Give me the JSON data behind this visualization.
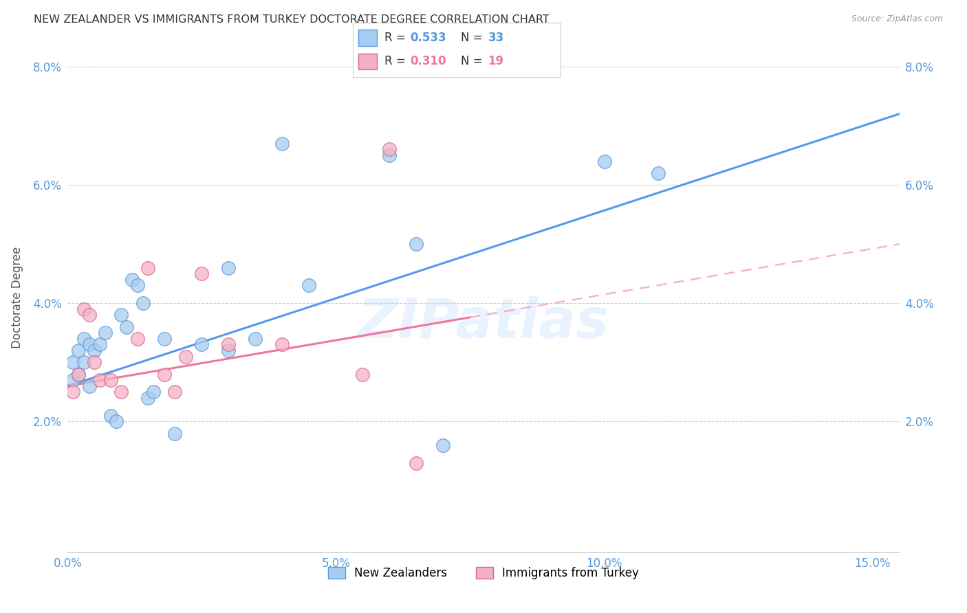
{
  "title": "NEW ZEALANDER VS IMMIGRANTS FROM TURKEY DOCTORATE DEGREE CORRELATION CHART",
  "source": "Source: ZipAtlas.com",
  "ylabel": "Doctorate Degree",
  "xlim": [
    0.0,
    0.155
  ],
  "ylim": [
    -0.002,
    0.084
  ],
  "r1": 0.533,
  "n1": 33,
  "r2": 0.31,
  "n2": 19,
  "color_blue_fill": "#A8CCF0",
  "color_blue_edge": "#5599DD",
  "color_pink_fill": "#F4B0C4",
  "color_pink_edge": "#DD6688",
  "line_blue": "#5599EE",
  "line_pink": "#EE7799",
  "watermark": "ZIPatlas",
  "legend1_label": "New Zealanders",
  "legend2_label": "Immigrants from Turkey",
  "xticks": [
    0.0,
    0.05,
    0.1,
    0.15
  ],
  "yticks": [
    0.02,
    0.04,
    0.06,
    0.08
  ],
  "blue_x": [
    0.001,
    0.001,
    0.002,
    0.002,
    0.003,
    0.003,
    0.004,
    0.004,
    0.005,
    0.006,
    0.007,
    0.008,
    0.009,
    0.01,
    0.011,
    0.012,
    0.013,
    0.014,
    0.015,
    0.016,
    0.018,
    0.02,
    0.025,
    0.03,
    0.03,
    0.035,
    0.04,
    0.045,
    0.06,
    0.065,
    0.07,
    0.1,
    0.11
  ],
  "blue_y": [
    0.027,
    0.03,
    0.028,
    0.032,
    0.03,
    0.034,
    0.033,
    0.026,
    0.032,
    0.033,
    0.035,
    0.021,
    0.02,
    0.038,
    0.036,
    0.044,
    0.043,
    0.04,
    0.024,
    0.025,
    0.034,
    0.018,
    0.033,
    0.046,
    0.032,
    0.034,
    0.067,
    0.043,
    0.065,
    0.05,
    0.016,
    0.064,
    0.062
  ],
  "pink_x": [
    0.001,
    0.002,
    0.003,
    0.004,
    0.005,
    0.006,
    0.008,
    0.01,
    0.013,
    0.015,
    0.018,
    0.02,
    0.022,
    0.025,
    0.03,
    0.04,
    0.055,
    0.06,
    0.065
  ],
  "pink_y": [
    0.025,
    0.028,
    0.039,
    0.038,
    0.03,
    0.027,
    0.027,
    0.025,
    0.034,
    0.046,
    0.028,
    0.025,
    0.031,
    0.045,
    0.033,
    0.033,
    0.028,
    0.066,
    0.013
  ],
  "blue_line_x0": 0.0,
  "blue_line_x1": 0.155,
  "blue_line_y0": 0.026,
  "blue_line_y1": 0.072,
  "pink_line_x0": 0.0,
  "pink_line_x1": 0.155,
  "pink_line_y0": 0.026,
  "pink_line_y1": 0.05
}
